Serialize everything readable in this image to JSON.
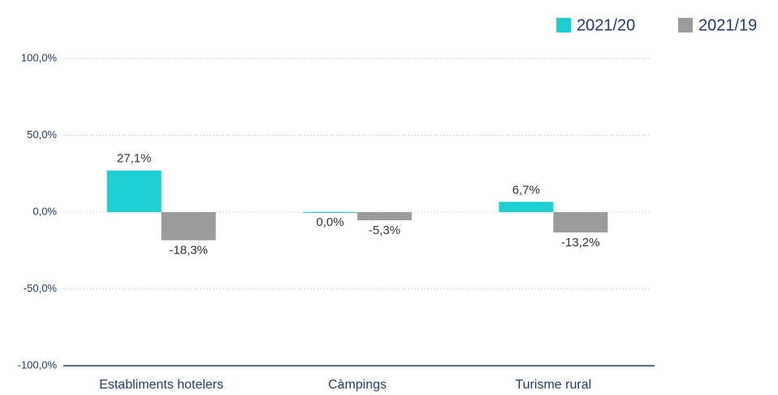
{
  "chart_data": {
    "type": "bar",
    "categories": [
      "Establiments hotelers",
      "Càmpings",
      "Turisme rural"
    ],
    "series": [
      {
        "name": "2021/20",
        "color": "#1dcfd0",
        "values": [
          27.1,
          0.0,
          6.7
        ],
        "value_labels": [
          "27,1%",
          "0,0%",
          "6,7%"
        ]
      },
      {
        "name": "2021/19",
        "color": "#9b9b9b",
        "values": [
          -18.3,
          -5.3,
          -13.2
        ],
        "value_labels": [
          "-18,3%",
          "-5,3%",
          "-13,2%"
        ]
      }
    ],
    "ylim": [
      -100,
      100
    ],
    "yticks": [
      {
        "value": -100,
        "label": "-100,0%"
      },
      {
        "value": -50,
        "label": "-50,0%"
      },
      {
        "value": 0,
        "label": "0,0%"
      },
      {
        "value": 50,
        "label": "50,0%"
      },
      {
        "value": 100,
        "label": "100,0%"
      }
    ],
    "grid": true,
    "legend": "top-right"
  }
}
